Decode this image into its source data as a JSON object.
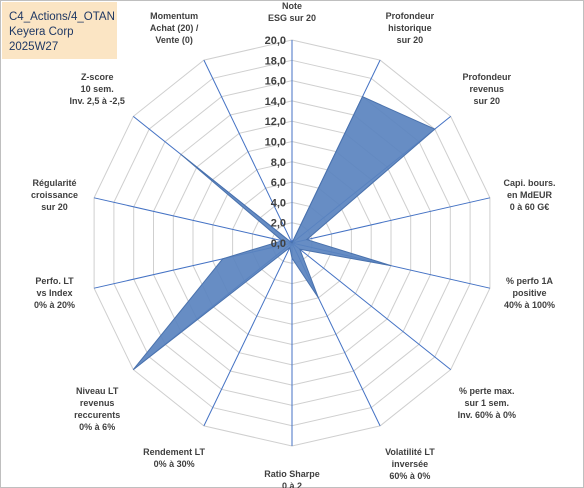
{
  "header": {
    "line1": "C4_Actions/4_OTAN",
    "line2": "Keyera Corp",
    "line3": "2025W27"
  },
  "chart_data": {
    "type": "radar",
    "title": "",
    "rmax": 20,
    "ticks": [
      0,
      2,
      4,
      6,
      8,
      10,
      12,
      14,
      16,
      18,
      20
    ],
    "tick_labels": [
      "0,0",
      "2,0",
      "4,0",
      "6,0",
      "8,0",
      "10,0",
      "12,0",
      "14,0",
      "16,0",
      "18,0",
      "20,0"
    ],
    "grid": true,
    "categories": [
      [
        "Note",
        "ESG sur 20"
      ],
      [
        "Profondeur",
        "historique",
        "sur 20"
      ],
      [
        "Profondeur",
        "revenus",
        "sur 20"
      ],
      [
        "Capi. bours.",
        "en MdEUR",
        "0 à 60 G€"
      ],
      [
        "% perfo 1A",
        "positive",
        "40% à 100%"
      ],
      [
        "% perte max.",
        "sur 1 sem.",
        "Inv. 60% à 0%"
      ],
      [
        "Volatilité LT",
        "inversée",
        "60% à 0%"
      ],
      [
        "Ratio Sharpe",
        "0 à 2"
      ],
      [
        "Rendement LT",
        "0% à 30%"
      ],
      [
        "Niveau LT",
        "revenus",
        "reccurents",
        "0% à 6%"
      ],
      [
        "Perfo. LT",
        "vs Index",
        "0% à 20%"
      ],
      [
        "Régularité",
        "croissance",
        "sur 20"
      ],
      [
        "Z-score",
        "10 sem.",
        "Inv. 2,5 à -2,5"
      ],
      [
        "Momentum",
        "Achat (20) /",
        "Vente (0)"
      ]
    ],
    "series": [
      {
        "values": [
          0,
          16,
          18,
          1.5,
          10,
          1,
          6,
          1.5,
          0.5,
          20,
          7,
          1,
          14,
          0
        ],
        "color": "#4f7ab8"
      }
    ],
    "colors": {
      "fill": "#5a83bf",
      "stroke": "#4a72ad",
      "grid": "#cfcfcf",
      "spoke": "#4472c4"
    }
  }
}
